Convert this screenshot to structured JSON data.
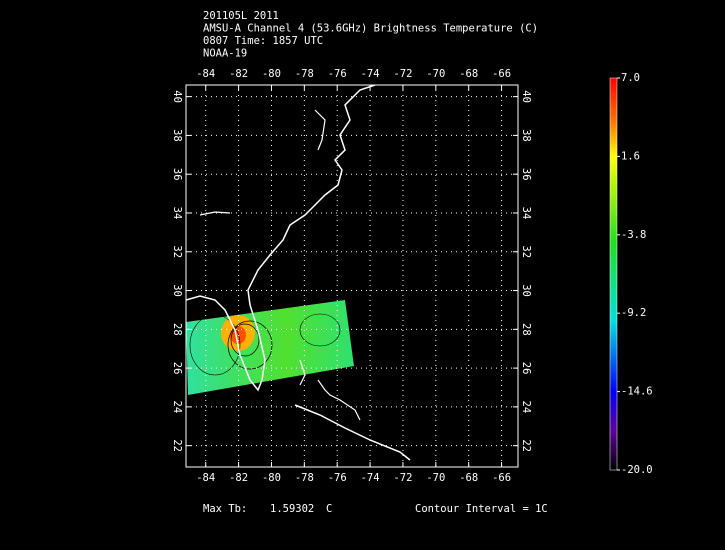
{
  "chart_data": {
    "type": "map",
    "title_lines": [
      "201105L 2011",
      "AMSU-A Channel 4 (53.6GHz) Brightness Temperature (C)",
      "0807 Time: 1857 UTC",
      "NOAA-19"
    ],
    "xlim": [
      -85.2,
      -65.0
    ],
    "ylim": [
      20.9,
      40.6
    ],
    "xticks": [
      -84,
      -82,
      -80,
      -78,
      -76,
      -74,
      -72,
      -70,
      -68,
      -66
    ],
    "yticks": [
      22,
      24,
      26,
      28,
      30,
      32,
      34,
      36,
      38,
      40
    ],
    "grid": true,
    "colorbar": {
      "lim": [
        -20.0,
        7.0
      ],
      "ticks": [
        {
          "value": 7.0,
          "label": "7.0"
        },
        1.6,
        -3.8,
        -9.2,
        -14.6,
        {
          "value": -20.0,
          "label": "-20.0"
        }
      ]
    },
    "footer": {
      "max_label": "Max Tb:",
      "max_value": 1.59302,
      "max_unit": "C",
      "contour": "Contour Interval = 1C"
    }
  }
}
